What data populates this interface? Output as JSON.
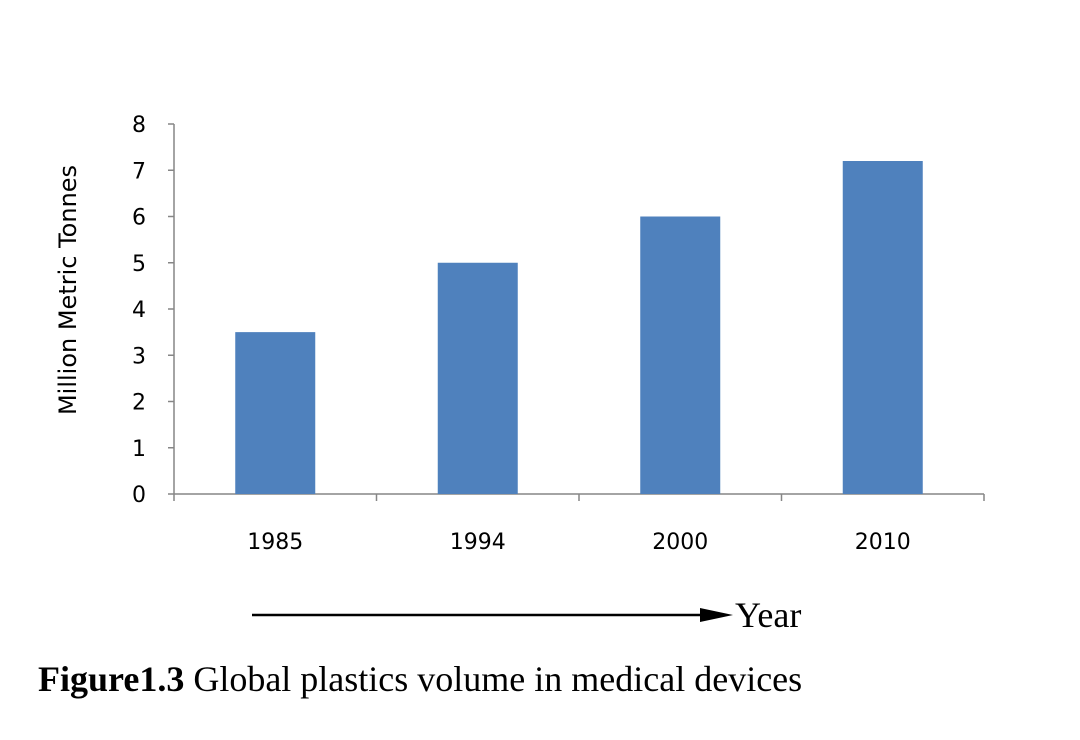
{
  "chart_data": {
    "type": "bar",
    "categories": [
      "1985",
      "1994",
      "2000",
      "2010"
    ],
    "values": [
      3.5,
      5,
      6,
      7.2
    ],
    "title": "",
    "xlabel": "Year",
    "ylabel": "Million Metric Tonnes",
    "ylim": [
      0,
      8
    ],
    "yticks": [
      "0",
      "1",
      "2",
      "3",
      "4",
      "5",
      "6",
      "7",
      "8"
    ],
    "bar_color": "#4f81bd",
    "grid": false,
    "legend": "none"
  },
  "caption": {
    "label": "Figure1.3",
    "text": "Global plastics volume in medical devices"
  }
}
